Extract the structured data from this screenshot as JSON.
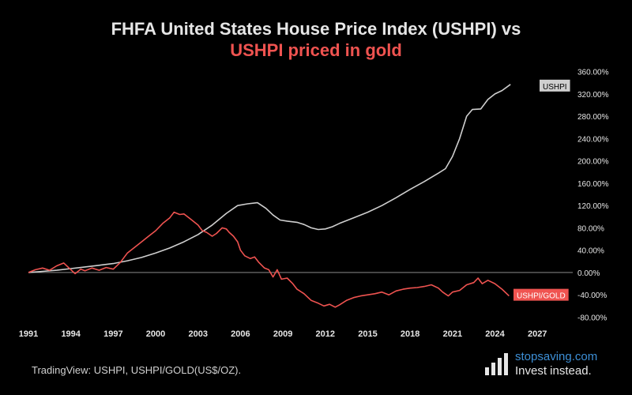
{
  "title_line1": "FHFA United States House Price Index (USHPI) vs",
  "title_line2": "USHPI priced in gold",
  "source": "TradingView: USHPI, USHPI/GOLD(US$/OZ).",
  "brand": {
    "name": "stopsaving.com",
    "tagline": "Invest instead."
  },
  "colors": {
    "background": "#000000",
    "ushpi": "#cfcfcf",
    "gold": "#ef5350",
    "zero_line": "#9e9e9e"
  },
  "chart_data": {
    "type": "line",
    "x_ticks": [
      "1991",
      "1994",
      "1997",
      "2000",
      "2003",
      "2006",
      "2009",
      "2012",
      "2015",
      "2018",
      "2021",
      "2024",
      "2027"
    ],
    "y_ticks": [
      "360.00%",
      "320.00%",
      "280.00%",
      "240.00%",
      "200.00%",
      "160.00%",
      "120.00%",
      "80.00%",
      "40.00%",
      "0.00%",
      "-40.00%",
      "-80.00%"
    ],
    "xlim": [
      1991,
      2029
    ],
    "ylim": [
      -85,
      375
    ],
    "series": [
      {
        "name": "USHPI",
        "color": "#cfcfcf",
        "points": [
          [
            1991,
            0
          ],
          [
            1992,
            2
          ],
          [
            1993,
            4
          ],
          [
            1994,
            7
          ],
          [
            1995,
            10
          ],
          [
            1996,
            13
          ],
          [
            1997,
            16
          ],
          [
            1998,
            21
          ],
          [
            1999,
            27
          ],
          [
            2000,
            35
          ],
          [
            2001,
            44
          ],
          [
            2002,
            55
          ],
          [
            2003,
            68
          ],
          [
            2004,
            85
          ],
          [
            2005,
            106
          ],
          [
            2005.8,
            120
          ],
          [
            2006.5,
            123
          ],
          [
            2007.2,
            125
          ],
          [
            2007.8,
            115
          ],
          [
            2008.3,
            103
          ],
          [
            2008.8,
            94
          ],
          [
            2009.3,
            92
          ],
          [
            2010,
            90
          ],
          [
            2010.5,
            86
          ],
          [
            2011,
            80
          ],
          [
            2011.5,
            77
          ],
          [
            2012,
            78
          ],
          [
            2012.5,
            82
          ],
          [
            2013,
            88
          ],
          [
            2014,
            98
          ],
          [
            2015,
            108
          ],
          [
            2016,
            120
          ],
          [
            2017,
            134
          ],
          [
            2018,
            149
          ],
          [
            2019,
            163
          ],
          [
            2020,
            178
          ],
          [
            2020.5,
            186
          ],
          [
            2021,
            208
          ],
          [
            2021.5,
            240
          ],
          [
            2022,
            280
          ],
          [
            2022.4,
            292
          ],
          [
            2023,
            293
          ],
          [
            2023.5,
            310
          ],
          [
            2024,
            320
          ],
          [
            2024.5,
            326
          ],
          [
            2025.1,
            337
          ]
        ]
      },
      {
        "name": "USHPI/GOLD",
        "color": "#ef5350",
        "points": [
          [
            1991,
            0
          ],
          [
            1991.5,
            5
          ],
          [
            1992,
            8
          ],
          [
            1992.5,
            4
          ],
          [
            1993,
            12
          ],
          [
            1993.5,
            17
          ],
          [
            1994,
            5
          ],
          [
            1994.3,
            -2
          ],
          [
            1994.7,
            6
          ],
          [
            1995,
            3
          ],
          [
            1995.5,
            8
          ],
          [
            1996,
            4
          ],
          [
            1996.5,
            9
          ],
          [
            1997,
            6
          ],
          [
            1997.5,
            18
          ],
          [
            1998,
            35
          ],
          [
            1998.5,
            45
          ],
          [
            1999,
            55
          ],
          [
            1999.5,
            65
          ],
          [
            2000,
            75
          ],
          [
            2000.5,
            88
          ],
          [
            2001,
            98
          ],
          [
            2001.3,
            108
          ],
          [
            2001.7,
            104
          ],
          [
            2002,
            105
          ],
          [
            2002.5,
            95
          ],
          [
            2003,
            85
          ],
          [
            2003.3,
            75
          ],
          [
            2003.6,
            72
          ],
          [
            2004,
            65
          ],
          [
            2004.3,
            70
          ],
          [
            2004.7,
            80
          ],
          [
            2005,
            78
          ],
          [
            2005.2,
            72
          ],
          [
            2005.5,
            65
          ],
          [
            2005.8,
            55
          ],
          [
            2006,
            40
          ],
          [
            2006.3,
            30
          ],
          [
            2006.7,
            25
          ],
          [
            2007,
            28
          ],
          [
            2007.3,
            18
          ],
          [
            2007.7,
            8
          ],
          [
            2008,
            5
          ],
          [
            2008.3,
            -8
          ],
          [
            2008.6,
            5
          ],
          [
            2008.9,
            -12
          ],
          [
            2009.3,
            -10
          ],
          [
            2009.7,
            -20
          ],
          [
            2010,
            -30
          ],
          [
            2010.5,
            -38
          ],
          [
            2011,
            -50
          ],
          [
            2011.5,
            -55
          ],
          [
            2011.9,
            -60
          ],
          [
            2012.3,
            -57
          ],
          [
            2012.7,
            -62
          ],
          [
            2013,
            -58
          ],
          [
            2013.5,
            -50
          ],
          [
            2014,
            -45
          ],
          [
            2014.5,
            -42
          ],
          [
            2015,
            -40
          ],
          [
            2015.5,
            -38
          ],
          [
            2016,
            -35
          ],
          [
            2016.5,
            -40
          ],
          [
            2017,
            -33
          ],
          [
            2017.5,
            -30
          ],
          [
            2018,
            -28
          ],
          [
            2018.5,
            -27
          ],
          [
            2019,
            -25
          ],
          [
            2019.5,
            -22
          ],
          [
            2020,
            -28
          ],
          [
            2020.3,
            -35
          ],
          [
            2020.7,
            -42
          ],
          [
            2021,
            -35
          ],
          [
            2021.5,
            -32
          ],
          [
            2022,
            -22
          ],
          [
            2022.5,
            -18
          ],
          [
            2022.8,
            -10
          ],
          [
            2023.1,
            -20
          ],
          [
            2023.5,
            -14
          ],
          [
            2024,
            -20
          ],
          [
            2024.5,
            -30
          ],
          [
            2025,
            -42
          ]
        ]
      }
    ]
  }
}
